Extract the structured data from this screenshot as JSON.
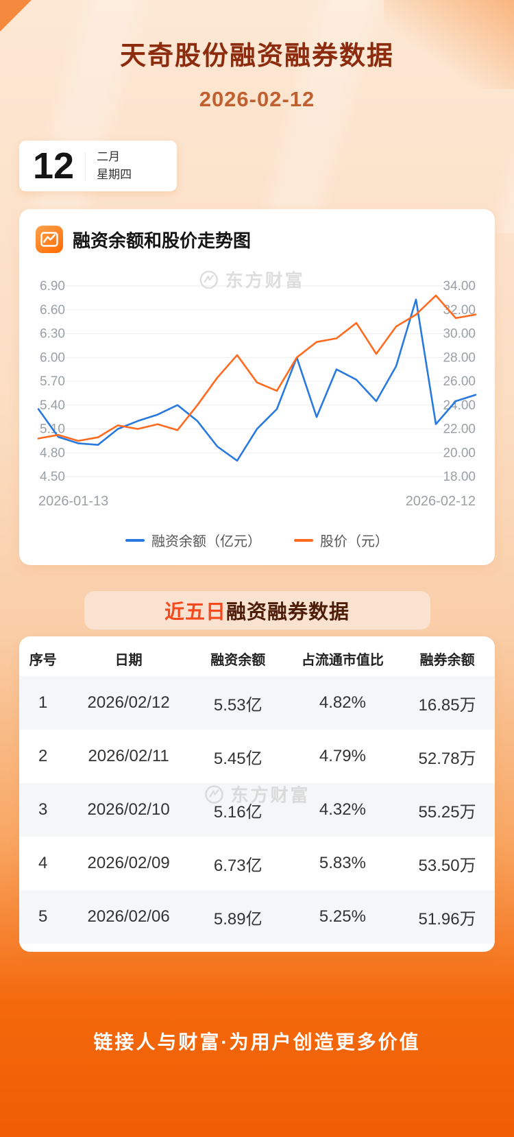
{
  "page": {
    "title": "天奇股份融资融券数据",
    "date": "2026-02-12"
  },
  "date_card": {
    "day": "12",
    "month": "二月",
    "weekday": "星期四"
  },
  "chart_card": {
    "title": "融资余额和股价走势图",
    "watermark": "东方财富"
  },
  "chart_data": {
    "type": "line",
    "x_start_label": "2026-01-13",
    "x_end_label": "2026-02-12",
    "grid": true,
    "legend_position": "bottom",
    "left_axis": {
      "title": "融资余额（亿元）",
      "min": 4.5,
      "max": 6.9,
      "tick_labels": [
        "6.90",
        "6.60",
        "6.30",
        "6.00",
        "5.70",
        "5.40",
        "5.10",
        "4.80",
        "4.50"
      ]
    },
    "right_axis": {
      "title": "股价（元）",
      "min": 18,
      "max": 34,
      "tick_labels": [
        "34.00",
        "32.00",
        "30.00",
        "28.00",
        "26.00",
        "24.00",
        "22.00",
        "20.00",
        "18.00"
      ]
    },
    "series": [
      {
        "name": "融资余额（亿元）",
        "axis": "left",
        "color": "#2779e0",
        "values": [
          5.35,
          5.0,
          4.92,
          4.9,
          5.1,
          5.2,
          5.28,
          5.4,
          5.2,
          4.88,
          4.7,
          5.1,
          5.35,
          6.0,
          5.25,
          5.85,
          5.72,
          5.45,
          5.89,
          6.73,
          5.16,
          5.45,
          5.53
        ]
      },
      {
        "name": "股价（元）",
        "axis": "right",
        "color": "#ff6a1e",
        "values": [
          21.2,
          21.5,
          21.0,
          21.3,
          22.3,
          22.0,
          22.4,
          21.9,
          24.0,
          26.3,
          28.2,
          25.9,
          25.2,
          28.0,
          29.3,
          29.6,
          30.9,
          28.3,
          30.6,
          31.6,
          33.2,
          31.3,
          31.6
        ]
      }
    ]
  },
  "table_card": {
    "title_highlight": "近五日",
    "title_rest": "融资融券数据",
    "watermark": "东方财富",
    "columns": [
      "序号",
      "日期",
      "融资余额",
      "占流通市值比",
      "融券余额"
    ],
    "rows": [
      [
        "1",
        "2026/02/12",
        "5.53亿",
        "4.82%",
        "16.85万"
      ],
      [
        "2",
        "2026/02/11",
        "5.45亿",
        "4.79%",
        "52.78万"
      ],
      [
        "3",
        "2026/02/10",
        "5.16亿",
        "4.32%",
        "55.25万"
      ],
      [
        "4",
        "2026/02/09",
        "6.73亿",
        "5.83%",
        "53.50万"
      ],
      [
        "5",
        "2026/02/06",
        "5.89亿",
        "5.25%",
        "51.96万"
      ]
    ]
  },
  "footer": {
    "slogan": "链接人与财富·为用户创造更多价值"
  },
  "colors": {
    "title": "#8c2b0e",
    "subtitle": "#c05f2f",
    "blue_line": "#2779e0",
    "orange_line": "#ff6a1e",
    "banner_highlight": "#f5481c",
    "row_alt_bg": "#f5f6f7",
    "footer_bg": "#f0600a"
  }
}
